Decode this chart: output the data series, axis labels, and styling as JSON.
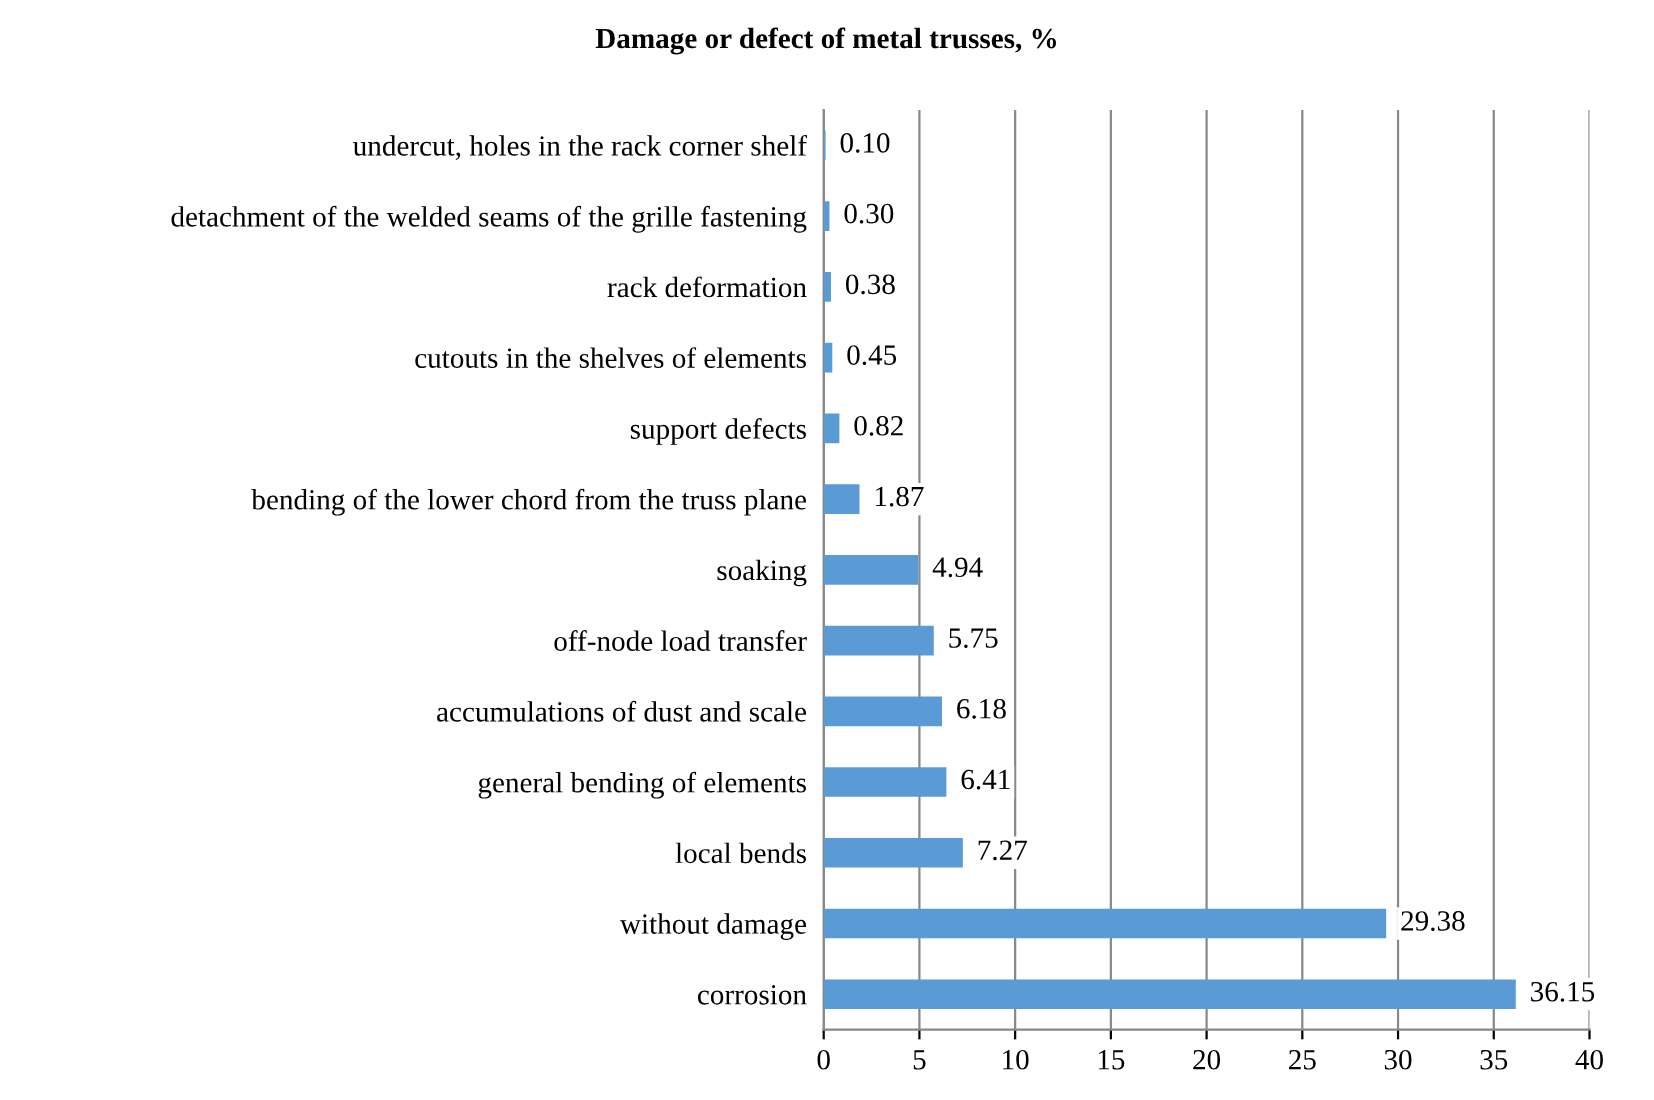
{
  "chart_data": {
    "type": "bar",
    "orientation": "horizontal",
    "title": "Damage or defect of metal trusses, %",
    "categories": [
      "undercut, holes in the rack corner shelf",
      "detachment of the welded seams of the grille fastening",
      "rack deformation",
      "cutouts in the shelves of elements",
      "support defects",
      "bending of the lower chord from the truss plane",
      "soaking",
      "off-node load transfer",
      "accumulations of dust and scale",
      "general bending of elements",
      "local bends",
      "without damage",
      "corrosion"
    ],
    "values": [
      0.1,
      0.3,
      0.38,
      0.45,
      0.82,
      1.87,
      4.94,
      5.75,
      6.18,
      6.41,
      7.27,
      29.38,
      36.15
    ],
    "value_labels": [
      "0.10",
      "0.30",
      "0.38",
      "0.45",
      "0.82",
      "1.87",
      "4.94",
      "5.75",
      "6.18",
      "6.41",
      "7.27",
      "29.38",
      "36.15"
    ],
    "color": "#5b9bd5",
    "xlim": [
      0,
      40
    ],
    "xticks": [
      0,
      5,
      10,
      15,
      20,
      25,
      30,
      35,
      40
    ],
    "grid": "x"
  }
}
